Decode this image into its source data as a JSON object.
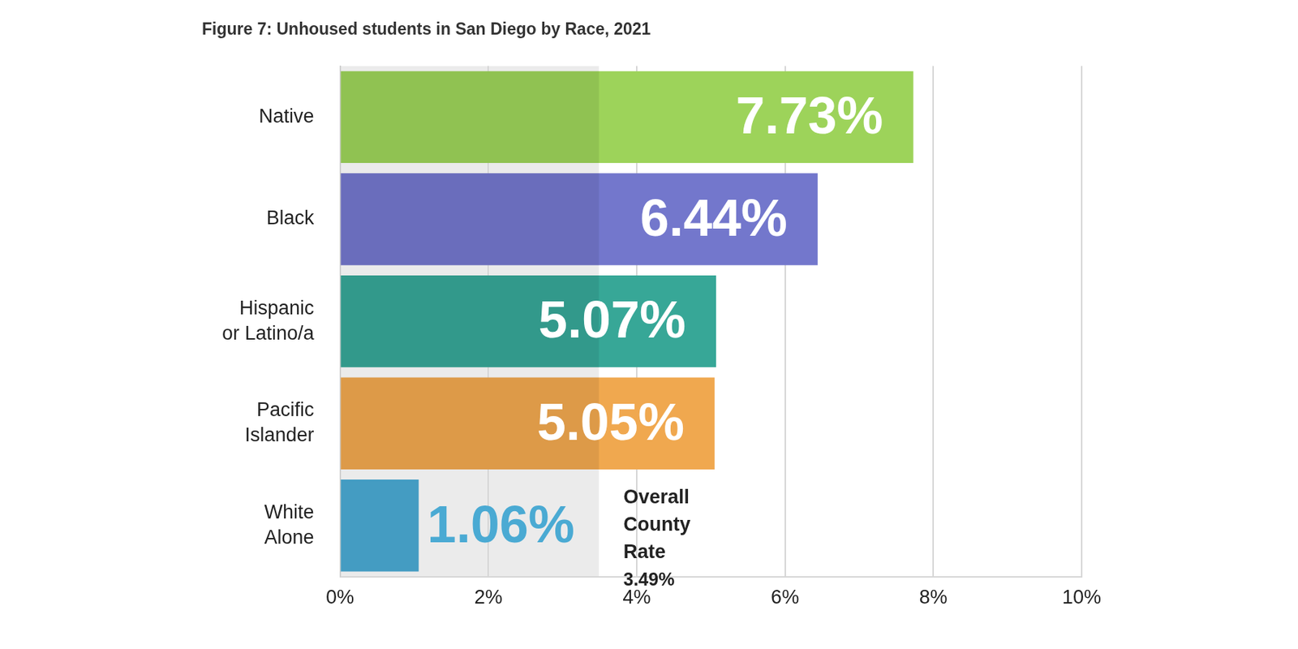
{
  "chart_data": {
    "type": "bar",
    "orientation": "horizontal",
    "title": "Figure 7: Unhoused students in San Diego by Race, 2021",
    "categories": [
      "Native",
      "Black",
      "Hispanic or Latino/a",
      "Pacific Islander",
      "White Alone"
    ],
    "values": [
      7.73,
      6.44,
      5.07,
      5.05,
      1.06
    ],
    "value_labels": [
      "7.73%",
      "6.44%",
      "5.07%",
      "5.05%",
      "1.06%"
    ],
    "colors": [
      "#9dd35a",
      "#7377cc",
      "#37a797",
      "#f0a84f",
      "#4aaad3"
    ],
    "xlim": [
      0,
      10
    ],
    "xticks": [
      {
        "value": 0,
        "label": "0%"
      },
      {
        "value": 2,
        "label": "2%"
      },
      {
        "value": 4,
        "label": "4%"
      },
      {
        "value": 6,
        "label": "6%"
      },
      {
        "value": 8,
        "label": "8%"
      },
      {
        "value": 10,
        "label": "10%"
      }
    ],
    "grid": true,
    "data_labels": true,
    "annotations": [
      {
        "text": "Overall County Rate",
        "x": 3.49,
        "label": "3.49%"
      }
    ]
  }
}
